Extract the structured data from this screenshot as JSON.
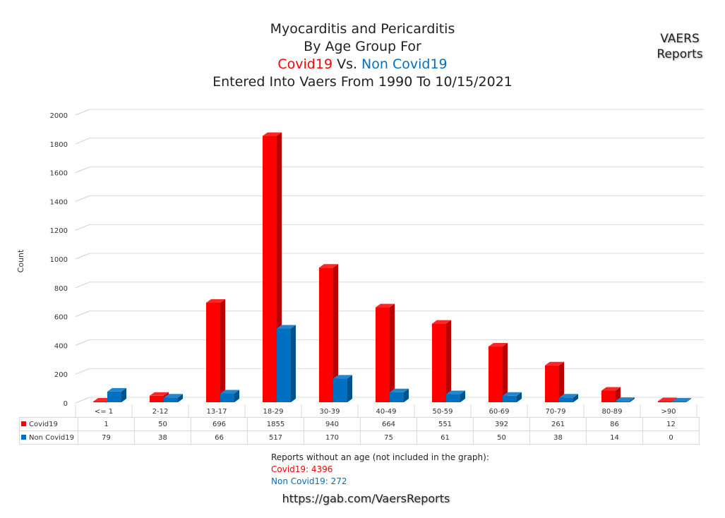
{
  "title": {
    "line1": "Myocarditis and Pericarditis",
    "line2": "By Age Group For",
    "line3_covid": "Covid19",
    "line3_vs": " Vs. ",
    "line3_noncovid": "Non Covid19",
    "line4": "Entered Into Vaers From 1990 To 10/15/2021"
  },
  "watermark": {
    "line1": "VAERS",
    "line2": "Reports"
  },
  "chart_data": {
    "type": "bar",
    "ylabel": "Count",
    "xlabel": "",
    "ylim": [
      0,
      2000
    ],
    "yticks": [
      0,
      200,
      400,
      600,
      800,
      1000,
      1200,
      1400,
      1600,
      1800,
      2000
    ],
    "grid": true,
    "categories": [
      "<= 1",
      "2-12",
      "13-17",
      "18-29",
      "30-39",
      "40-49",
      "50-59",
      "60-69",
      "70-79",
      "80-89",
      ">90"
    ],
    "series": [
      {
        "name": "Covid19",
        "color": "#ff0000",
        "values": [
          1,
          50,
          696,
          1855,
          940,
          664,
          551,
          392,
          261,
          86,
          12
        ]
      },
      {
        "name": "Non Covid19",
        "color": "#0070c0",
        "values": [
          79,
          38,
          66,
          517,
          170,
          75,
          61,
          50,
          38,
          14,
          0
        ]
      }
    ]
  },
  "notes": {
    "heading": "Reports without an age (not included in the graph):",
    "covid": "Covid19: 4396",
    "noncovid": "Non Covid19: 272"
  },
  "footer": {
    "url": "https://gab.com/VaersReports"
  }
}
